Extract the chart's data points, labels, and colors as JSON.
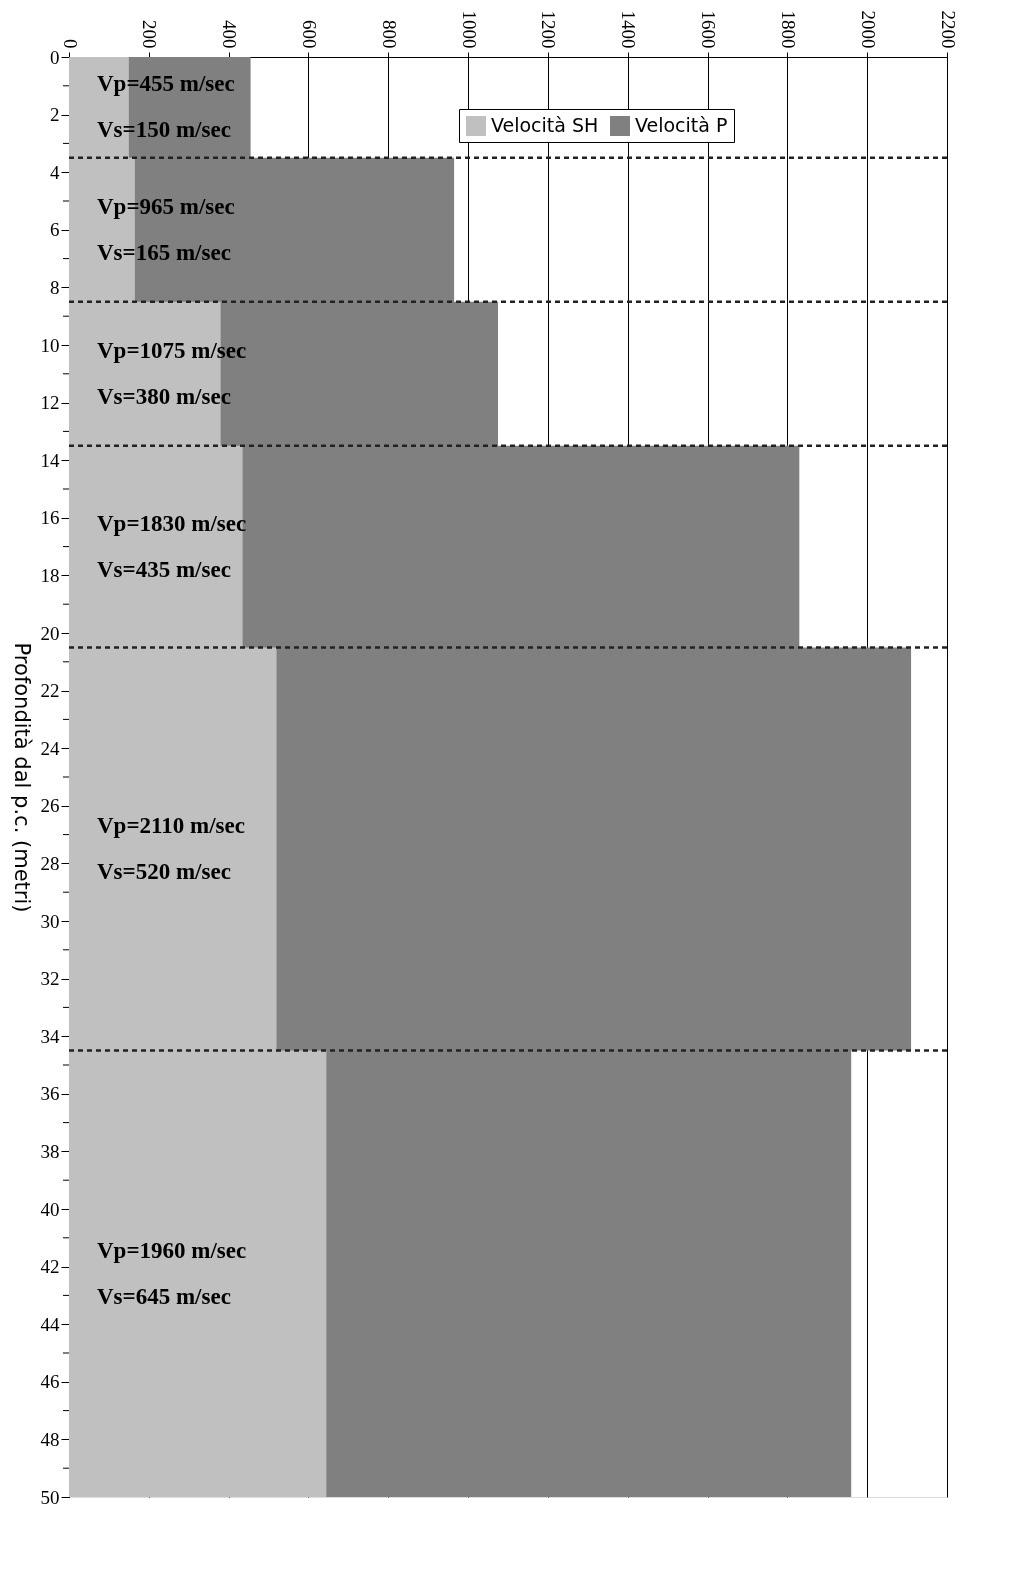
{
  "chart_data": {
    "type": "area",
    "orientation": "horizontal",
    "ylabel": "Profondità dal p.c. (metri)",
    "x": [
      0,
      3.5,
      8.5,
      13.5,
      20.5,
      34.5,
      50
    ],
    "series": [
      {
        "name": "Velocità SH",
        "color": "#c0c0c0",
        "values": [
          150,
          165,
          380,
          435,
          520,
          645,
          645
        ]
      },
      {
        "name": "Velocità P",
        "color": "#808080",
        "values": [
          455,
          965,
          1075,
          1830,
          2110,
          1960,
          1960
        ]
      }
    ],
    "xlim": [
      0,
      2200
    ],
    "xticks": [
      0,
      200,
      400,
      600,
      800,
      1000,
      1200,
      1400,
      1600,
      1800,
      2000,
      2200
    ],
    "ylim": [
      50,
      0
    ],
    "yticks": [
      0,
      {
        "value": 1,
        "label": null
      },
      2,
      {
        "value": 3,
        "label": null
      },
      4,
      {
        "value": 5,
        "label": null
      },
      6,
      {
        "value": 7,
        "label": null
      },
      8,
      {
        "value": 9,
        "label": null
      },
      10,
      {
        "value": 11,
        "label": null
      },
      12,
      {
        "value": 13,
        "label": null
      },
      14,
      {
        "value": 15,
        "label": null
      },
      16,
      {
        "value": 17,
        "label": null
      },
      18,
      {
        "value": 19,
        "label": null
      },
      20,
      {
        "value": 21,
        "label": null
      },
      22,
      {
        "value": 23,
        "label": null
      },
      24,
      {
        "value": 25,
        "label": null
      },
      26,
      {
        "value": 27,
        "label": null
      },
      28,
      {
        "value": 29,
        "label": null
      },
      30,
      {
        "value": 31,
        "label": null
      },
      32,
      {
        "value": 33,
        "label": null
      },
      34,
      {
        "value": 35,
        "label": null
      },
      36,
      {
        "value": 37,
        "label": null
      },
      38,
      {
        "value": 39,
        "label": null
      },
      40,
      {
        "value": 41,
        "label": null
      },
      42,
      {
        "value": 43,
        "label": null
      },
      44,
      {
        "value": 45,
        "label": null
      },
      46,
      {
        "value": 47,
        "label": null
      },
      48,
      {
        "value": 49,
        "label": null
      },
      50
    ],
    "ref_lines": [
      {
        "axis": "y",
        "value": 3.5,
        "color": "#222222",
        "line_style": "dashed"
      },
      {
        "axis": "y",
        "value": 8.5,
        "color": "#222222",
        "line_style": "dashed"
      },
      {
        "axis": "y",
        "value": 13.5,
        "color": "#222222",
        "line_style": "dashed"
      },
      {
        "axis": "y",
        "value": 20.5,
        "color": "#222222",
        "line_style": "dashed"
      },
      {
        "axis": "y",
        "value": 34.5,
        "color": "#222222",
        "line_style": "dashed"
      }
    ],
    "annotations": [
      "Vp=455 m/sec",
      "Vs=150 m/sec",
      "Vp=965 m/sec",
      "Vs=165 m/sec",
      "Vp=1075 m/sec",
      "Vs=380 m/sec",
      "Vp=1830 m/sec",
      "Vs=435 m/sec",
      "Vp=2110 m/sec",
      "Vs=520 m/sec",
      "Vp=1960 m/sec",
      "Vs=645 m/sec"
    ],
    "grid": "x",
    "legend": "top right"
  }
}
